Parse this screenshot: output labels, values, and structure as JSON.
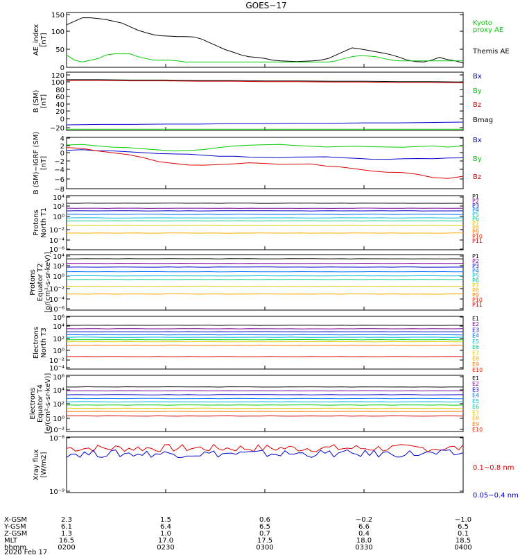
{
  "title": "GOES−17",
  "colors": {
    "black": "#000000",
    "green": "#00cc00",
    "blue": "#0000cc",
    "red": "#dd0000",
    "P1": "#000000",
    "P2": "#7a0099",
    "P3": "#0000cc",
    "P4": "#0070ff",
    "P5": "#00bbdd",
    "P6": "#00cc88",
    "P7": "#ddcc00",
    "P8": "#ffaa00",
    "P9": "#ff7700",
    "P10": "#ee2200",
    "P11": "#bb0000"
  },
  "panels": [
    {
      "id": "ae",
      "ylabel": [
        "AE_index",
        "[nT]"
      ],
      "ticks": [
        "150",
        "100",
        "50",
        "0"
      ],
      "legend": [
        {
          "text": "Kyoto",
          "color": "#00cc00"
        },
        {
          "text": "proxy AE",
          "color": "#00cc00"
        },
        {
          "text": "Themis AE",
          "color": "#000000"
        }
      ]
    },
    {
      "id": "bsm",
      "ylabel": [
        "B (SM)",
        "[nT]"
      ],
      "ticks": [
        "120",
        "100",
        "80",
        "60",
        "40",
        "20",
        "0",
        "−20"
      ],
      "legend": [
        {
          "text": "Bx",
          "color": "#0000cc"
        },
        {
          "text": "By",
          "color": "#00cc00"
        },
        {
          "text": "Bz",
          "color": "#dd0000"
        },
        {
          "text": "Bmag",
          "color": "#000000"
        }
      ]
    },
    {
      "id": "bdiff",
      "ylabel": [
        "B (SM)−IGRF (SM)",
        "[nT]"
      ],
      "ticks": [
        "4",
        "2",
        "0",
        "−2",
        "−4",
        "−6",
        "−8"
      ],
      "legend": [
        {
          "text": "Bx",
          "color": "#0000cc"
        },
        {
          "text": "By",
          "color": "#00cc00"
        },
        {
          "text": "Bz",
          "color": "#dd0000"
        }
      ]
    },
    {
      "id": "pn",
      "ylabel": [
        "Protons",
        "North T1"
      ],
      "ticks": [
        "10⁴",
        "10²",
        "10⁰",
        "10⁻²",
        "10⁻⁴",
        "10⁻⁶"
      ],
      "legend": [
        "P1",
        "P2",
        "P3",
        "P4",
        "P5",
        "P6",
        "P7",
        "P8",
        "P9",
        "P10",
        "P11"
      ]
    },
    {
      "id": "pe",
      "ylabel": [
        "Protons",
        "Equator T2",
        "[p/(cm²-s-sr-keV)]"
      ],
      "ticks": [
        "10⁴",
        "10²",
        "10⁰",
        "10⁻²",
        "10⁻⁴",
        "10⁻⁶"
      ],
      "legend": [
        "P1",
        "P2",
        "P3",
        "P4",
        "P5",
        "P6",
        "P7",
        "P8",
        "P9",
        "P10",
        "P11"
      ]
    },
    {
      "id": "en",
      "ylabel": [
        "Electrons",
        "North T3"
      ],
      "ticks": [
        "10⁶",
        "10⁴",
        "10²",
        "10⁰",
        "10⁻²",
        "10⁻⁴"
      ],
      "legend": [
        "E1",
        "E2",
        "E3",
        "E4",
        "E5",
        "E6",
        "E7",
        "E8",
        "E9",
        "E10"
      ]
    },
    {
      "id": "ee",
      "ylabel": [
        "Electrons",
        "Equator T4",
        "[e/(cm²-s-sr-keV)]"
      ],
      "ticks": [
        "10⁶",
        "10⁴",
        "10²",
        "10⁰",
        "10⁻²"
      ],
      "legend": [
        "E1",
        "E2",
        "E3",
        "E4",
        "E5",
        "E6",
        "E7",
        "E8",
        "E9",
        "E10"
      ]
    },
    {
      "id": "xray",
      "ylabel": [
        "Xray flux",
        "[W/m2]"
      ],
      "ticks": [
        "10⁻⁸",
        "10⁻⁹"
      ],
      "legend": [
        {
          "text": "0.1−0.8 nm",
          "color": "#dd0000"
        },
        {
          "text": "0.05−0.4 nm",
          "color": "#0000cc"
        }
      ]
    }
  ],
  "axis_table": {
    "labels": [
      "X-GSM",
      "Y-GSM",
      "Z-GSM",
      "MLT",
      "hhmm",
      "2020 Feb 17"
    ],
    "columns": [
      [
        "2.3",
        "6.1",
        "1.3",
        "16.5",
        "0200"
      ],
      [
        "1.5",
        "6.4",
        "1.0",
        "17.0",
        "0230"
      ],
      [
        "0.6",
        "6.5",
        "0.7",
        "17.5",
        "0300"
      ],
      [
        "−0.2",
        "6.6",
        "0.4",
        "18.0",
        "0330"
      ],
      [
        "−1.0",
        "6.5",
        "0.1",
        "18.5",
        "0400"
      ]
    ]
  },
  "chart_data": [
    {
      "type": "line",
      "title": "AE_index",
      "ylabel": "AE_index [nT]",
      "ylim": [
        0,
        155
      ],
      "x_range": [
        "0200",
        "0400"
      ],
      "series": [
        {
          "name": "Themis AE",
          "color": "#000000",
          "values": [
            120,
            130,
            140,
            140,
            138,
            135,
            130,
            125,
            115,
            105,
            98,
            92,
            89,
            88,
            87,
            87,
            86,
            80,
            70,
            60,
            50,
            43,
            35,
            30,
            28,
            25,
            20,
            18,
            17,
            16,
            17,
            18,
            20,
            25,
            35,
            45,
            55,
            52,
            48,
            44,
            40,
            35,
            28,
            20,
            16,
            15,
            20,
            28,
            22,
            18,
            12
          ]
        },
        {
          "name": "Kyoto proxy AE",
          "color": "#00cc00",
          "values": [
            35,
            20,
            15,
            20,
            25,
            35,
            38,
            38,
            38,
            30,
            25,
            20,
            20,
            20,
            18,
            15,
            15,
            15,
            15,
            15,
            15,
            15,
            15,
            15,
            15,
            15,
            15,
            15,
            15,
            15,
            15,
            15,
            15,
            15,
            18,
            25,
            30,
            33,
            32,
            30,
            25,
            20,
            18,
            18,
            18,
            18,
            18,
            18,
            18,
            18,
            18
          ]
        }
      ]
    },
    {
      "type": "line",
      "title": "B (SM)",
      "ylabel": "B (SM) [nT]",
      "ylim": [
        -22,
        125
      ],
      "series": [
        {
          "name": "Bx",
          "color": "#0000cc",
          "values": [
            -8,
            -7,
            -7,
            -6,
            -6,
            -5,
            -5,
            -4,
            -4,
            -3,
            -3,
            -2,
            -1
          ]
        },
        {
          "name": "By",
          "color": "#00cc00",
          "values": [
            -19,
            -19,
            -19,
            -19,
            -19,
            -19,
            -19,
            -19,
            -19,
            -19,
            -19,
            -19,
            -19
          ]
        },
        {
          "name": "Bz",
          "color": "#dd0000",
          "values": [
            104,
            104,
            103,
            103,
            102,
            102,
            101,
            101,
            100,
            100,
            99,
            99,
            98
          ]
        },
        {
          "name": "Bmag",
          "color": "#000000",
          "values": [
            106,
            106,
            105,
            105,
            104,
            104,
            103,
            103,
            102,
            102,
            101,
            101,
            100
          ]
        }
      ]
    },
    {
      "type": "line",
      "title": "B (SM)-IGRF (SM)",
      "ylabel": "B (SM)-IGRF (SM) [nT]",
      "ylim": [
        -9,
        4.5
      ],
      "series": [
        {
          "name": "Bx",
          "color": "#0000cc",
          "values": [
            1.1,
            1.2,
            1.0,
            0.9,
            0.7,
            0.5,
            0.3,
            0.2,
            0.0,
            -0.2,
            -0.4,
            -0.5,
            -0.7,
            -0.8,
            -0.8,
            -0.7,
            -0.7,
            -0.6,
            -0.8,
            -1.0,
            -1.2,
            -1.3,
            -1.2,
            -1.1,
            -1.1,
            -1.0,
            -0.9
          ]
        },
        {
          "name": "By",
          "color": "#00cc00",
          "values": [
            2.5,
            2.6,
            2.3,
            2.0,
            1.8,
            1.5,
            1.2,
            1.0,
            1.0,
            1.3,
            1.8,
            2.2,
            2.5,
            2.5,
            2.6,
            2.3,
            2.2,
            2.0,
            2.1,
            2.1,
            2.0,
            1.9,
            1.9,
            2.1,
            2.2,
            2.0,
            2.2
          ]
        },
        {
          "name": "Bz",
          "color": "#dd0000",
          "values": [
            1.8,
            1.6,
            1.0,
            0.5,
            0.0,
            -0.8,
            -1.8,
            -2.4,
            -2.8,
            -2.8,
            -2.6,
            -2.5,
            -2.2,
            -2.3,
            -2.6,
            -2.5,
            -2.5,
            -3.0,
            -3.3,
            -3.8,
            -4.3,
            -4.6,
            -4.8,
            -5.3,
            -6.0,
            -6.3,
            -5.8
          ]
        }
      ]
    },
    {
      "type": "line",
      "title": "Protons North T1",
      "ylabel": "Protons North T1",
      "yscale": "log",
      "ylim": [
        -6.5,
        4.2
      ],
      "series": [
        {
          "name": "P1",
          "color": "#000000",
          "log10": 2.7
        },
        {
          "name": "P2",
          "color": "#7a0099",
          "log10": 1.7
        },
        {
          "name": "P3",
          "color": "#0000cc",
          "log10": 1.2
        },
        {
          "name": "P4",
          "color": "#0070ff",
          "log10": 0.5
        },
        {
          "name": "P5",
          "color": "#00bbdd",
          "log10": -0.2
        },
        {
          "name": "P6",
          "color": "#00cc88",
          "log10": -0.8
        },
        {
          "name": "P7",
          "color": "#ddcc00",
          "log10": -1.7
        },
        {
          "name": "P8",
          "color": "#ffaa00",
          "log10": -3.2
        }
      ]
    },
    {
      "type": "line",
      "title": "Protons Equator T2",
      "ylabel": "Protons Equator T2 [p/(cm2-s-sr-keV)]",
      "yscale": "log",
      "ylim": [
        -6.5,
        4.2
      ],
      "series": [
        {
          "name": "P1",
          "color": "#000000",
          "log10": 3.4
        },
        {
          "name": "P2",
          "color": "#7a0099",
          "log10": 2.5
        },
        {
          "name": "P3",
          "color": "#0000cc",
          "log10": 1.8
        },
        {
          "name": "P4",
          "color": "#0070ff",
          "log10": 0.9
        },
        {
          "name": "P5",
          "color": "#00bbdd",
          "log10": 0.1
        },
        {
          "name": "P6",
          "color": "#00cc88",
          "log10": -0.6
        },
        {
          "name": "P7",
          "color": "#ddcc00",
          "log10": -1.9
        },
        {
          "name": "P8",
          "color": "#ffaa00",
          "log10": -3.4
        }
      ]
    },
    {
      "type": "line",
      "title": "Electrons North T3",
      "ylabel": "Electrons North T3",
      "yscale": "log",
      "ylim": [
        -4.4,
        6.2
      ],
      "series": [
        {
          "name": "E1",
          "color": "#000000",
          "log10": 4.4
        },
        {
          "name": "E2",
          "color": "#7a0099",
          "log10": 3.7
        },
        {
          "name": "E3",
          "color": "#0000cc",
          "log10": 3.1
        },
        {
          "name": "E4",
          "color": "#0070ff",
          "log10": 2.5
        },
        {
          "name": "E5",
          "color": "#00bbdd",
          "log10": 2.0
        },
        {
          "name": "E6",
          "color": "#00cc00",
          "log10": 1.5
        },
        {
          "name": "E7",
          "color": "#ddcc00",
          "log10": 1.1
        },
        {
          "name": "E8",
          "color": "#ff7700",
          "log10": 0.4
        },
        {
          "name": "E9",
          "color": "#dd0000",
          "log10": -1.9
        }
      ]
    },
    {
      "type": "line",
      "title": "Electrons Equator T4",
      "ylabel": "Electrons Equator T4 [e/(cm2-s-sr-keV)]",
      "yscale": "log",
      "ylim": [
        -2.5,
        6.2
      ],
      "series": [
        {
          "name": "E1",
          "color": "#000000",
          "log10": 4.4
        },
        {
          "name": "E2",
          "color": "#7a0099",
          "log10": 3.8
        },
        {
          "name": "E3",
          "color": "#0000cc",
          "log10": 3.2
        },
        {
          "name": "E4",
          "color": "#0070ff",
          "log10": 2.6
        },
        {
          "name": "E5",
          "color": "#00bbdd",
          "log10": 2.1
        },
        {
          "name": "E6",
          "color": "#00cc00",
          "log10": 1.6
        },
        {
          "name": "E7",
          "color": "#ddcc00",
          "log10": 1.1
        },
        {
          "name": "E8",
          "color": "#ff7700",
          "log10": 0.6
        },
        {
          "name": "E9",
          "color": "#dd0000",
          "log10": -0.1
        }
      ]
    },
    {
      "type": "line",
      "title": "Xray flux",
      "ylabel": "Xray flux [W/m2]",
      "yscale": "log",
      "ylim": [
        -9,
        -8
      ],
      "series": [
        {
          "name": "0.1-0.8 nm",
          "color": "#dd0000",
          "log10": -8.2
        },
        {
          "name": "0.05-0.4 nm",
          "color": "#0000cc",
          "log10": -8.3
        }
      ]
    }
  ]
}
